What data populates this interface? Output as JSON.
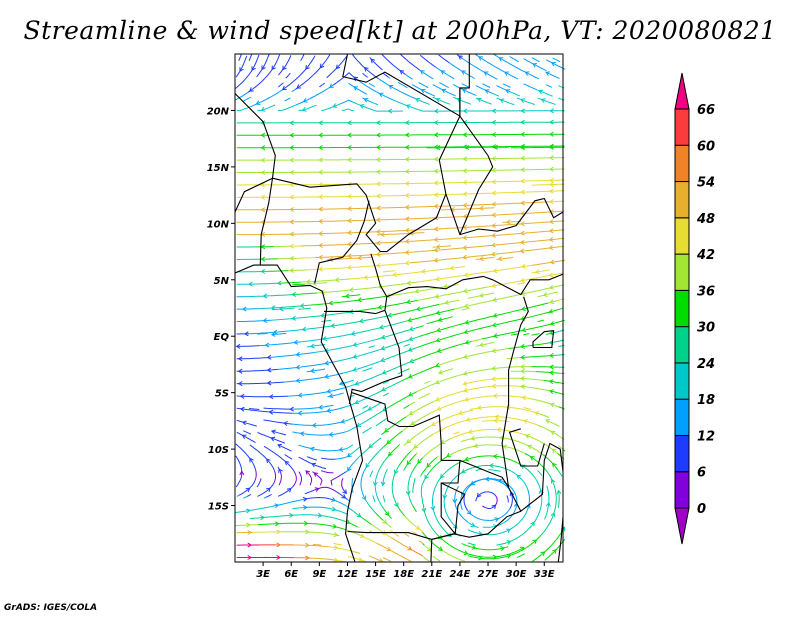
{
  "title": "Streamline & wind speed[kt] at 200hPa, VT: 2020080821",
  "credit": "GrADS: IGES/COLA",
  "map": {
    "lon_range": [
      0,
      35
    ],
    "lat_range": [
      -20,
      25
    ],
    "x_ticks": [
      {
        "v": 3,
        "label": "3E"
      },
      {
        "v": 6,
        "label": "6E"
      },
      {
        "v": 9,
        "label": "9E"
      },
      {
        "v": 12,
        "label": "12E"
      },
      {
        "v": 15,
        "label": "15E"
      },
      {
        "v": 18,
        "label": "18E"
      },
      {
        "v": 21,
        "label": "21E"
      },
      {
        "v": 24,
        "label": "24E"
      },
      {
        "v": 27,
        "label": "27E"
      },
      {
        "v": 30,
        "label": "30E"
      },
      {
        "v": 33,
        "label": "33E"
      }
    ],
    "y_ticks": [
      {
        "v": 20,
        "label": "20N"
      },
      {
        "v": 15,
        "label": "15N"
      },
      {
        "v": 10,
        "label": "10N"
      },
      {
        "v": 5,
        "label": "5N"
      },
      {
        "v": 0,
        "label": "EQ"
      },
      {
        "v": -5,
        "label": "5S"
      },
      {
        "v": -10,
        "label": "10S"
      },
      {
        "v": -15,
        "label": "15S"
      }
    ]
  },
  "colorbar": {
    "levels": [
      "0",
      "6",
      "12",
      "18",
      "24",
      "30",
      "36",
      "42",
      "48",
      "54",
      "60",
      "66"
    ],
    "colors": [
      "#a000c8",
      "#8200dc",
      "#1e3cff",
      "#00a0ff",
      "#00c8c8",
      "#00d28c",
      "#00dc00",
      "#a0e632",
      "#e6dc32",
      "#e6af2d",
      "#f08228",
      "#fa3c3c",
      "#f00082"
    ]
  }
}
